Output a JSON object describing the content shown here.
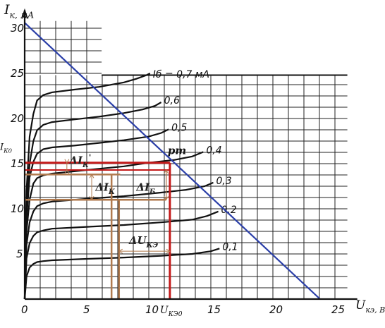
{
  "chart_data": {
    "type": "line",
    "xlabel": "U",
    "xlabel_sub": "кэ, В",
    "ylabel": "I",
    "ylabel_sub": "к, мА",
    "xlim": [
      0,
      27
    ],
    "ylim": [
      0,
      32
    ],
    "x_ticks": [
      "0",
      "5",
      "10",
      "15",
      "20",
      "25"
    ],
    "y_ticks": [
      "5",
      "10",
      "15",
      "20",
      "25",
      "30"
    ],
    "grid": true,
    "series": [
      {
        "name": "Iб = 0,7 мА",
        "label": "Iб = 0,7 мА",
        "x": [
          0,
          0.15,
          0.4,
          0.7,
          1.0,
          1.5,
          2.2,
          4,
          6,
          8,
          9.0,
          9.8,
          10.1
        ],
        "y": [
          0,
          12,
          18,
          20.5,
          22,
          22.6,
          22.9,
          23.2,
          23.5,
          24.0,
          24.4,
          24.8,
          25
        ]
      },
      {
        "name": "0,6",
        "label": "0,6",
        "x": [
          0,
          0.15,
          0.4,
          0.7,
          1.0,
          1.5,
          2.2,
          4,
          6,
          8,
          9.5,
          10.5,
          11.0
        ],
        "y": [
          0,
          10,
          15,
          17.5,
          18.7,
          19.3,
          19.6,
          19.9,
          20.2,
          20.6,
          21.0,
          21.4,
          21.8
        ]
      },
      {
        "name": "0,5",
        "label": "0,5",
        "x": [
          0,
          0.15,
          0.4,
          0.7,
          1.0,
          1.5,
          2.2,
          4,
          6,
          8,
          10,
          11.0,
          11.6
        ],
        "y": [
          0,
          9,
          13.5,
          15.2,
          16.1,
          16.6,
          16.8,
          17.0,
          17.3,
          17.6,
          18.0,
          18.4,
          18.8
        ]
      },
      {
        "name": "0,4",
        "label": "0,4",
        "x": [
          0,
          0.15,
          0.4,
          0.7,
          1.0,
          1.5,
          2.2,
          5,
          8,
          10,
          12,
          13.5,
          14.4
        ],
        "y": [
          0,
          7.5,
          11.0,
          12.8,
          13.4,
          13.7,
          13.9,
          14.3,
          14.7,
          15.1,
          15.4,
          15.8,
          16.3
        ]
      },
      {
        "name": "0,3",
        "label": "0,3",
        "x": [
          0,
          0.15,
          0.4,
          0.7,
          1.0,
          1.5,
          2.2,
          5,
          8,
          11,
          13,
          14.5,
          15.2
        ],
        "y": [
          0,
          6.0,
          8.5,
          9.7,
          10.3,
          10.6,
          10.8,
          11.1,
          11.4,
          11.8,
          12.1,
          12.5,
          12.9
        ]
      },
      {
        "name": "0,2",
        "label": "0,2",
        "x": [
          0,
          0.15,
          0.4,
          0.7,
          1.0,
          1.5,
          2.2,
          5,
          8,
          11,
          13.5,
          14.7,
          15.6
        ],
        "y": [
          0,
          4.5,
          6.2,
          7.0,
          7.4,
          7.6,
          7.8,
          8.0,
          8.2,
          8.5,
          8.8,
          9.2,
          9.7
        ]
      },
      {
        "name": "0,1",
        "label": "0,1",
        "x": [
          0,
          0.15,
          0.4,
          0.7,
          1.0,
          1.5,
          2.2,
          5,
          8,
          11,
          13.5,
          15.0,
          15.7
        ],
        "y": [
          0,
          2.5,
          3.5,
          3.9,
          4.1,
          4.2,
          4.3,
          4.45,
          4.6,
          4.8,
          5.0,
          5.3,
          5.6
        ]
      }
    ],
    "load_line": {
      "x": [
        0,
        23.8
      ],
      "y": [
        30.6,
        0
      ],
      "color": "#2b3fa8"
    },
    "operating_point": {
      "label": "pm",
      "x": 11.7,
      "y": 15.1
    },
    "annotations": {
      "ik0": {
        "main": "I",
        "sub": "К0",
        "y": 15.1
      },
      "uke0": {
        "main": "U",
        "sub": "КЭ0",
        "x": 11.7
      },
      "dik_prime": {
        "text": "ΔI",
        "sub": "К",
        "sup": "'"
      },
      "dik": {
        "text": "ΔI",
        "sub": "К"
      },
      "dib": {
        "text": "ΔI",
        "sub": "Б"
      },
      "duke": {
        "text": "ΔU",
        "sub": "КЭ"
      }
    },
    "colors": {
      "red": "#c41a1a",
      "brown": "#b07a4e",
      "blue": "#2b3fa8",
      "ink": "#111111"
    }
  }
}
